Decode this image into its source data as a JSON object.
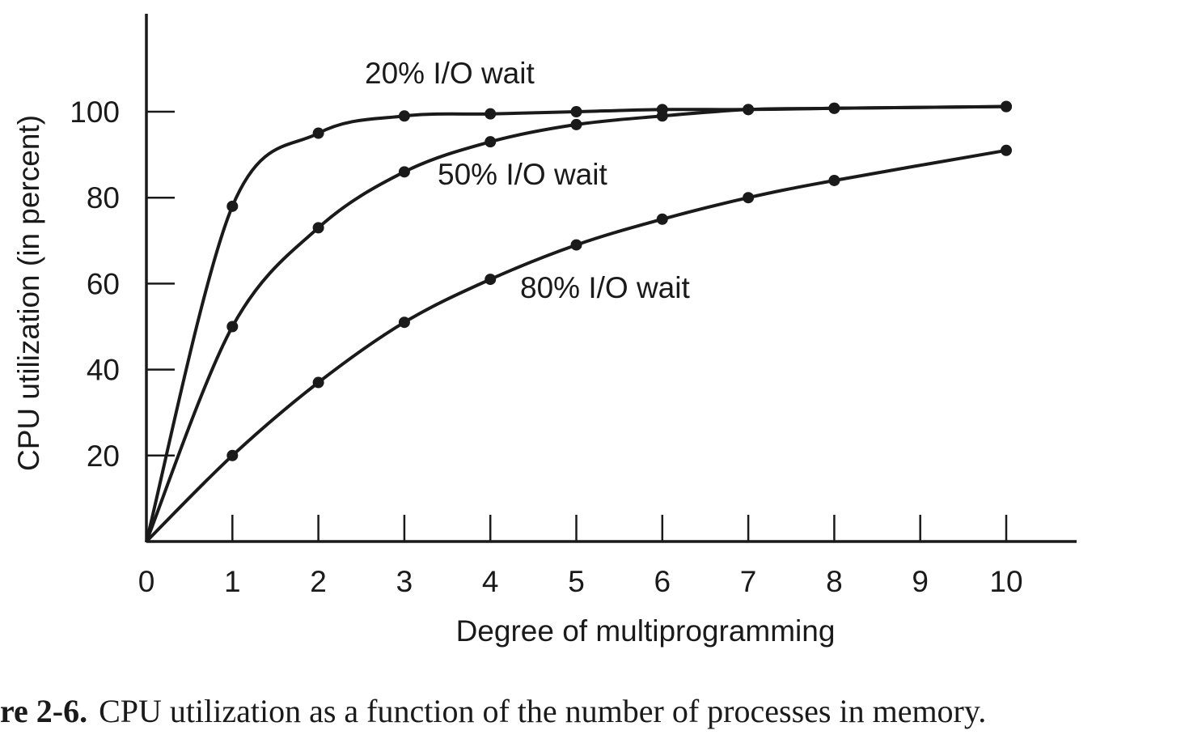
{
  "chart_data": {
    "type": "line",
    "xlabel": "Degree of multiprogramming",
    "ylabel": "CPU utilization (in percent)",
    "xlim": [
      0,
      10
    ],
    "ylim": [
      0,
      100
    ],
    "x_ticks": [
      "0",
      "1",
      "2",
      "3",
      "4",
      "5",
      "6",
      "7",
      "8",
      "9",
      "10"
    ],
    "y_ticks": [
      "20",
      "40",
      "60",
      "80",
      "100"
    ],
    "grid": false,
    "legend": "none",
    "series": [
      {
        "name": "20% I/O wait",
        "x": [
          1,
          2,
          3,
          4,
          5,
          6,
          7,
          8,
          10
        ],
        "y": [
          78,
          95,
          99,
          99.5,
          100,
          100.5,
          100.5,
          100.8,
          101.2
        ]
      },
      {
        "name": "50% I/O wait",
        "x": [
          1,
          2,
          3,
          4,
          5,
          6,
          7,
          8,
          10
        ],
        "y": [
          50,
          73,
          86,
          93,
          97,
          99,
          100.5,
          100.8,
          101.2
        ]
      },
      {
        "name": "80% I/O wait",
        "x": [
          1,
          2,
          3,
          4,
          5,
          6,
          7,
          8,
          10
        ],
        "y": [
          20,
          37,
          51,
          61,
          69,
          75,
          80,
          84,
          91
        ]
      }
    ]
  },
  "caption": {
    "label": "re 2-6.",
    "text": "CPU utilization as a function of the number of processes in memory."
  }
}
